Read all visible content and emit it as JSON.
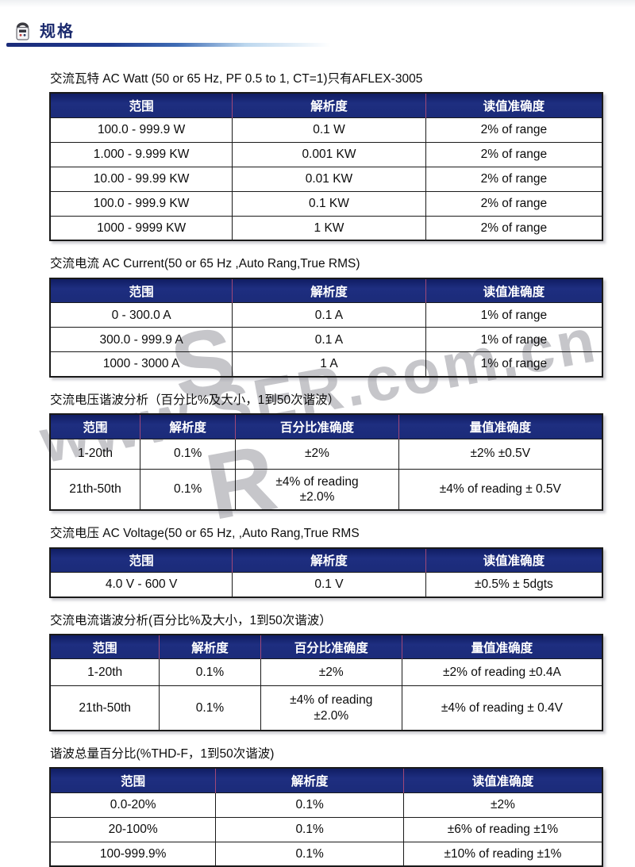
{
  "header": {
    "title": "规格"
  },
  "watermark": {
    "text": "www.SER.com.cn",
    "fragment_top": "S",
    "fragment_bottom": "R"
  },
  "colors": {
    "accent_navy": "#1b2b79",
    "header_separator": "#a04878",
    "title_navy": "#1c2b6e",
    "watermark_gray": "#c6c6ca"
  },
  "sections": [
    {
      "title": "交流瓦特 AC Watt (50 or 65 Hz, PF 0.5 to 1, CT=1)只有AFLEX-3005",
      "columns": [
        "范围",
        "解析度",
        "读值准确度"
      ],
      "rows": [
        [
          "100.0 - 999.9 W",
          "0.1 W",
          "2% of range"
        ],
        [
          "1.000 - 9.999 KW",
          "0.001 KW",
          "2% of range"
        ],
        [
          "10.00 - 99.99 KW",
          "0.01 KW",
          "2% of range"
        ],
        [
          "100.0 - 999.9 KW",
          "0.1 KW",
          "2% of range"
        ],
        [
          "1000 - 9999 KW",
          "1 KW",
          "2% of range"
        ]
      ]
    },
    {
      "title": "交流电流 AC Current(50 or 65 Hz ,Auto Rang,True RMS)",
      "columns": [
        "范围",
        "解析度",
        "读值准确度"
      ],
      "rows": [
        [
          "0 - 300.0 A",
          "0.1 A",
          "1% of range"
        ],
        [
          "300.0 - 999.9 A",
          "0.1 A",
          "1% of range"
        ],
        [
          "1000 - 3000 A",
          "1 A",
          "1% of range"
        ]
      ]
    },
    {
      "title": "交流电压谐波分析（百分比%及大小，1到50次谐波）",
      "columns": [
        "范围",
        "解析度",
        "百分比准确度",
        "量值准确度"
      ],
      "rows": [
        [
          "1-20th",
          "0.1%",
          "±2%",
          "±2% ±0.5V"
        ],
        [
          "21th-50th",
          "0.1%",
          "±4% of reading\n±2.0%",
          "±4% of reading ± 0.5V"
        ]
      ]
    },
    {
      "title": "交流电压 AC Voltage(50 or 65 Hz, ,Auto Rang,True RMS",
      "columns": [
        "范围",
        "解析度",
        "读值准确度"
      ],
      "rows": [
        [
          "4.0 V - 600 V",
          "0.1 V",
          "±0.5% ± 5dgts"
        ]
      ]
    },
    {
      "title": "交流电流谐波分析(百分比%及大小，1到50次谐波）",
      "columns": [
        "范围",
        "解析度",
        "百分比准确度",
        "量值准确度"
      ],
      "rows": [
        [
          "1-20th",
          "0.1%",
          "±2%",
          "±2% of reading ±0.4A"
        ],
        [
          "21th-50th",
          "0.1%",
          "±4% of reading\n±2.0%",
          "±4% of reading ± 0.4V"
        ]
      ]
    },
    {
      "title": "谐波总量百分比(%THD-F，1到50次谐波)",
      "columns": [
        "范围",
        "解析度",
        "读值准确度"
      ],
      "rows": [
        [
          "0.0-20%",
          "0.1%",
          "±2%"
        ],
        [
          "20-100%",
          "0.1%",
          "±6% of reading ±1%"
        ],
        [
          "100-999.9%",
          "0.1%",
          "±10% of reading ±1%"
        ]
      ]
    }
  ]
}
